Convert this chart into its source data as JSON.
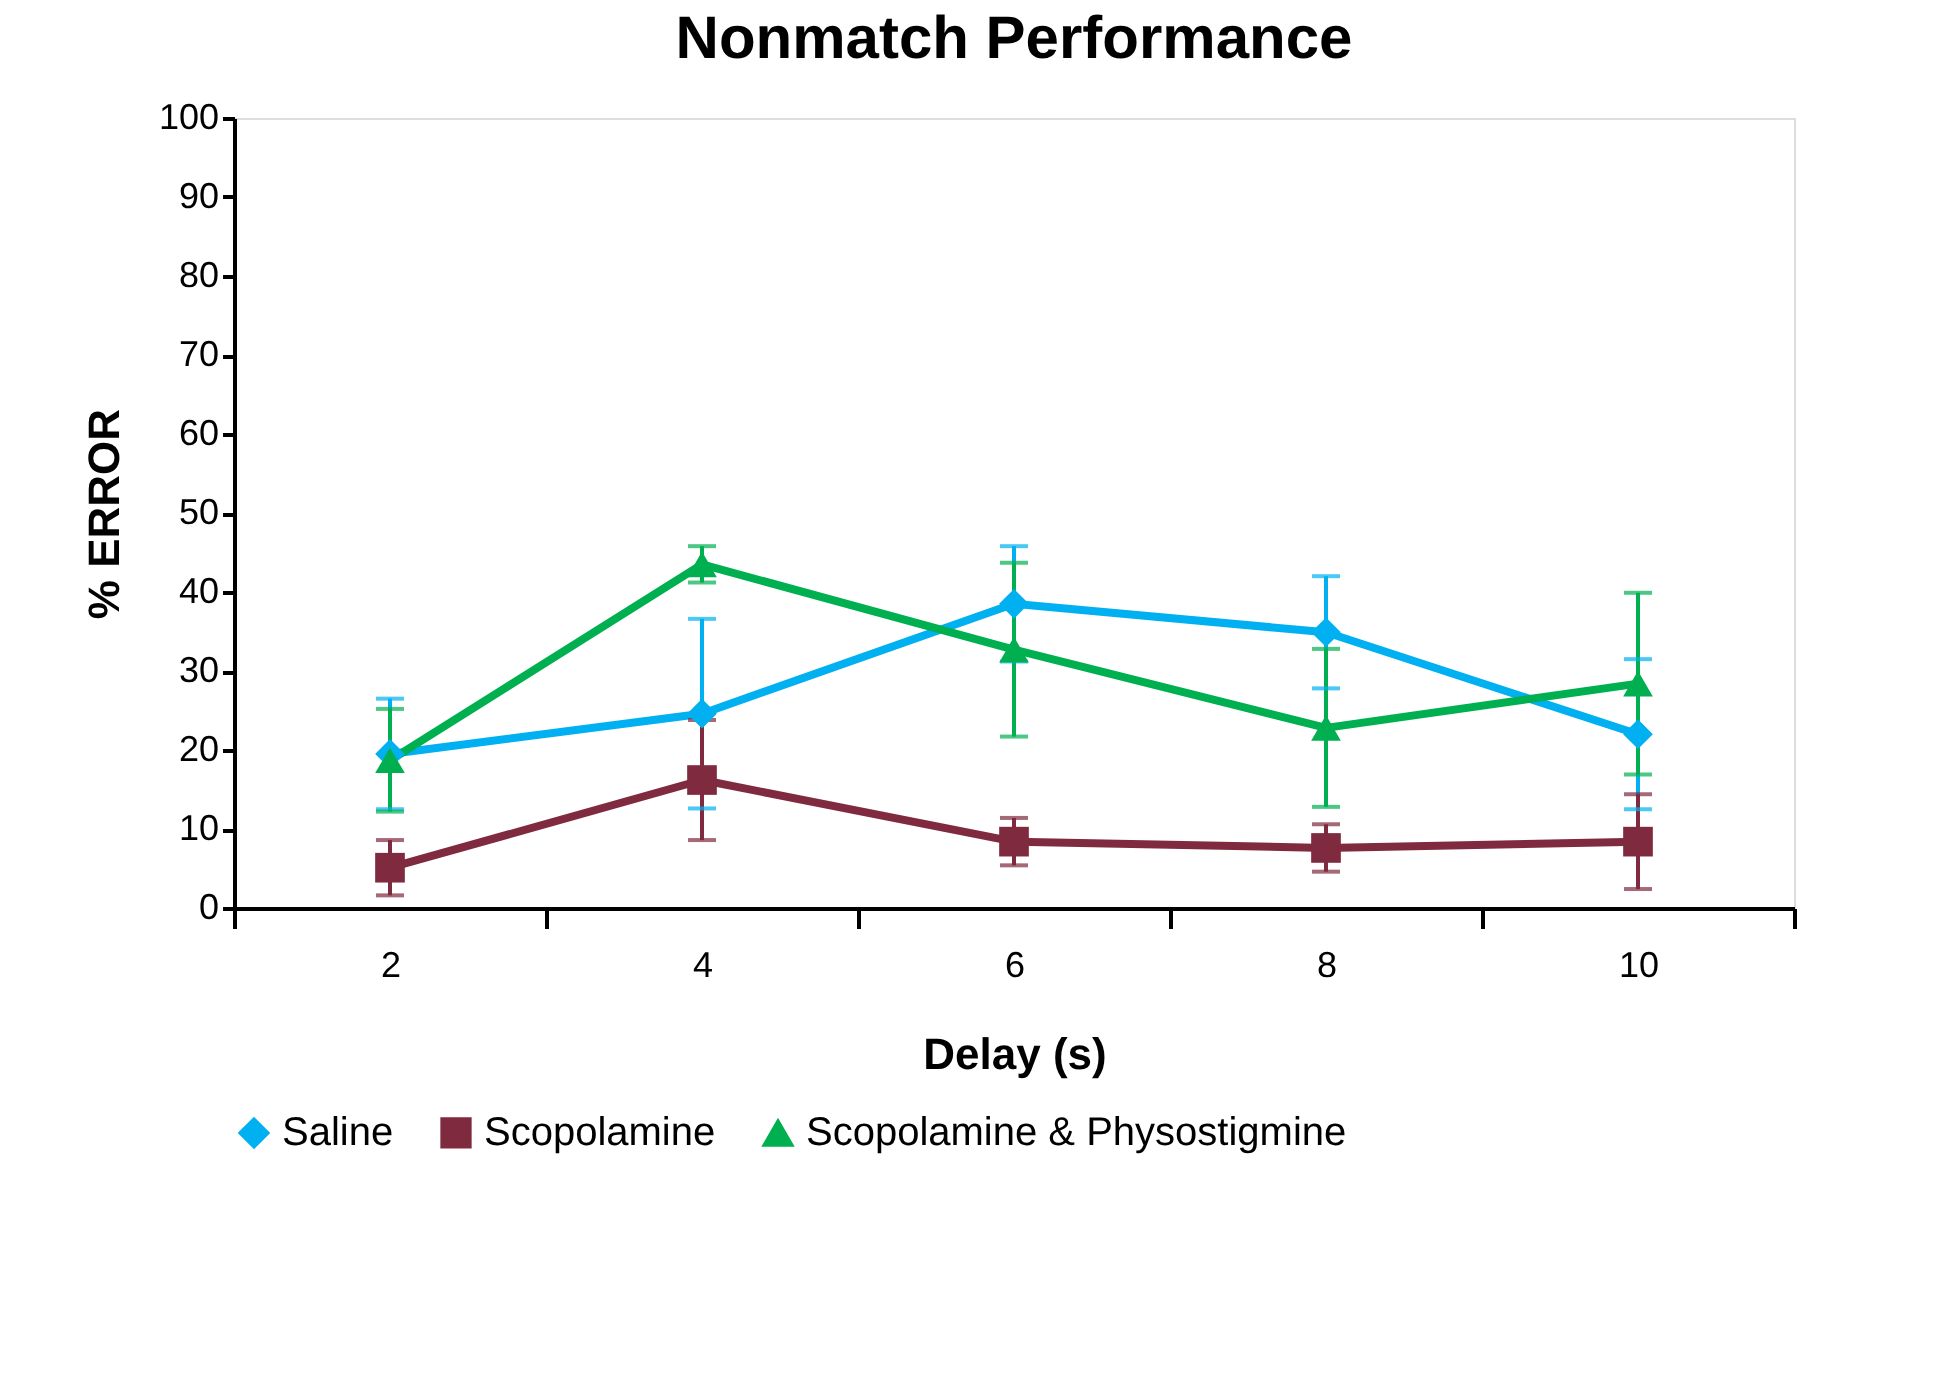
{
  "chart_data": {
    "type": "line",
    "title": "Nonmatch Performance",
    "xlabel": "Delay (s)",
    "ylabel": "% ERROR",
    "categories": [
      "2",
      "4",
      "6",
      "8",
      "10"
    ],
    "series": [
      {
        "name": "Saline",
        "color": "#00b0f0",
        "marker": "diamond",
        "values": [
          19.5,
          24.6,
          38.5,
          34.9,
          22
        ],
        "errors": [
          7,
          12,
          7.3,
          7.1,
          9.5
        ]
      },
      {
        "name": "Scopolamine",
        "color": "#7f2a3f",
        "marker": "square",
        "values": [
          5.1,
          16.2,
          8.4,
          7.6,
          8.4
        ],
        "errors": [
          3.5,
          7.6,
          3,
          3,
          6
        ]
      },
      {
        "name": "Scopolamine &  Physostigmine",
        "color": "#00b050",
        "marker": "triangle",
        "values": [
          18.7,
          43.5,
          32.7,
          22.8,
          28.4
        ],
        "errors": [
          6.5,
          2.3,
          11,
          10,
          11.5
        ]
      }
    ],
    "ylim": [
      0,
      100
    ],
    "yticks": [
      0,
      10,
      20,
      30,
      40,
      50,
      60,
      70,
      80,
      90,
      100
    ],
    "grid": false,
    "legend": "bottom"
  }
}
